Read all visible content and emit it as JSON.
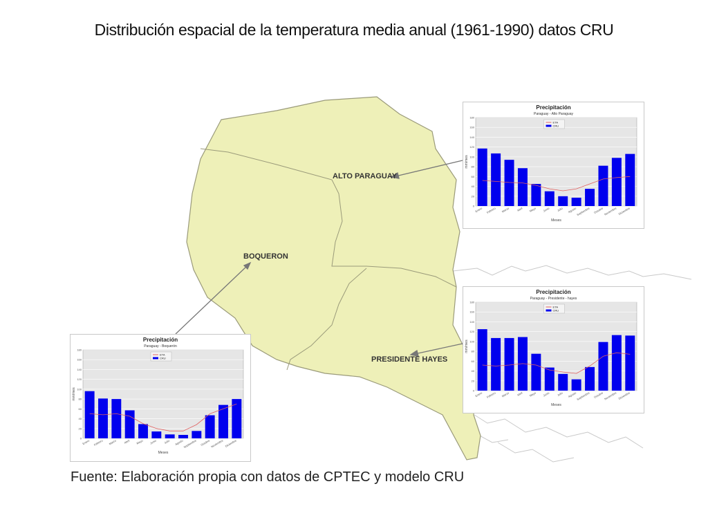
{
  "title": "Distribución espacial de la temperatura media anual (1961-1990) datos CRU",
  "source": "Fuente: Elaboración propia con datos de CPTEC y modelo CRU",
  "regions": {
    "alto_paraguay": "ALTO PARAGUAY",
    "boqueron": "BOQUERON",
    "presidente_hayes": "PRESIDENTE HAYES"
  },
  "colors": {
    "map_fill": "#eef0b8",
    "border": "#9a9a7a",
    "bar": "#0000ee",
    "line": "#e0605f",
    "plot_bg": "#e6e6e6"
  },
  "chart_data": [
    {
      "id": "alto",
      "type": "bar",
      "title": "Precipitación",
      "subtitle": "Paraguay - Alto Paraguay",
      "xlabel": "Meses",
      "ylabel": "mm/mes",
      "ylim": [
        0,
        180
      ],
      "yticks": [
        0,
        20,
        40,
        60,
        80,
        100,
        120,
        140,
        160,
        180
      ],
      "categories": [
        "Enero",
        "Febrero",
        "Marzo",
        "Abril",
        "Mayo",
        "Junio",
        "Julio",
        "Agosto",
        "Septiembre",
        "Octubre",
        "Noviembre",
        "Diciembre"
      ],
      "legend": [
        "ETA",
        "CRU"
      ],
      "series": [
        {
          "name": "CRU",
          "kind": "bar",
          "values": [
            117,
            107,
            94,
            77,
            45,
            30,
            20,
            17,
            35,
            82,
            98,
            106
          ]
        },
        {
          "name": "ETA",
          "kind": "line",
          "values": [
            52,
            50,
            48,
            47,
            42,
            35,
            31,
            35,
            45,
            55,
            58,
            60
          ]
        }
      ]
    },
    {
      "id": "pres",
      "type": "bar",
      "title": "Precipitación",
      "subtitle": "Paraguay - Presidente - hayes",
      "xlabel": "Meses",
      "ylabel": "mm/mes",
      "ylim": [
        0,
        180
      ],
      "yticks": [
        0,
        20,
        40,
        60,
        80,
        100,
        120,
        140,
        160,
        180
      ],
      "categories": [
        "Enero",
        "Febrero",
        "Marzo",
        "Abril",
        "Mayo",
        "Junio",
        "Julio",
        "Agosto",
        "Septiembre",
        "Octubre",
        "Noviembre",
        "Diciembre"
      ],
      "legend": [
        "ETA",
        "CRU"
      ],
      "series": [
        {
          "name": "CRU",
          "kind": "bar",
          "values": [
            125,
            107,
            107,
            109,
            75,
            47,
            34,
            23,
            48,
            99,
            113,
            112
          ]
        },
        {
          "name": "ETA",
          "kind": "line",
          "values": [
            52,
            50,
            52,
            55,
            52,
            42,
            38,
            35,
            50,
            70,
            77,
            74
          ]
        }
      ]
    },
    {
      "id": "boq",
      "type": "bar",
      "title": "Precipitación",
      "subtitle": "Paraguay - Boquerón",
      "xlabel": "Meses",
      "ylabel": "mm/mes",
      "ylim": [
        0,
        180
      ],
      "yticks": [
        0,
        20,
        40,
        60,
        80,
        100,
        120,
        140,
        160,
        180
      ],
      "categories": [
        "Enero",
        "Febrero",
        "Marzo",
        "Abril",
        "Mayo",
        "Junio",
        "Julio",
        "Agosto",
        "Septiembre",
        "Octubre",
        "Noviembre",
        "Diciembre"
      ],
      "legend": [
        "ETA",
        "CRU"
      ],
      "series": [
        {
          "name": "CRU",
          "kind": "bar",
          "values": [
            96,
            81,
            80,
            57,
            29,
            14,
            8,
            7,
            15,
            47,
            68,
            80
          ]
        },
        {
          "name": "ETA",
          "kind": "line",
          "values": [
            50,
            48,
            50,
            45,
            30,
            20,
            15,
            15,
            28,
            50,
            60,
            70
          ]
        }
      ]
    }
  ]
}
